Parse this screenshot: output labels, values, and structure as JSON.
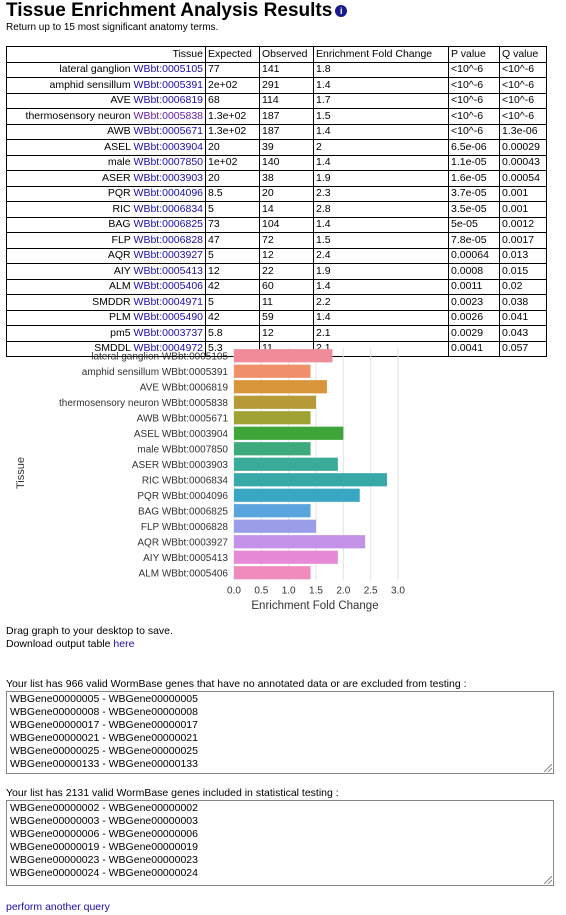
{
  "header": {
    "title": "Tissue Enrichment Analysis Results",
    "info_icon": "info-icon",
    "subtitle": "Return up to 15 most significant anatomy terms."
  },
  "table": {
    "columns": [
      "Tissue",
      "Expected",
      "Observed",
      "Enrichment Fold Change",
      "P value",
      "Q value"
    ],
    "rows": [
      {
        "name": "lateral ganglion",
        "id": "WBbt:0005105",
        "expected": "77",
        "observed": "141",
        "fold": "1.8",
        "p": "<10^-6",
        "q": "<10^-6"
      },
      {
        "name": "amphid sensillum",
        "id": "WBbt:0005391",
        "expected": "2e+02",
        "observed": "291",
        "fold": "1.4",
        "p": "<10^-6",
        "q": "<10^-6"
      },
      {
        "name": "AVE",
        "id": "WBbt:0006819",
        "expected": "68",
        "observed": "114",
        "fold": "1.7",
        "p": "<10^-6",
        "q": "<10^-6"
      },
      {
        "name": "thermosensory neuron",
        "id": "WBbt:0005838",
        "expected": "1.3e+02",
        "observed": "187",
        "fold": "1.5",
        "p": "<10^-6",
        "q": "<10^-6"
      },
      {
        "name": "AWB",
        "id": "WBbt:0005671",
        "expected": "1.3e+02",
        "observed": "187",
        "fold": "1.4",
        "p": "<10^-6",
        "q": "1.3e-06"
      },
      {
        "name": "ASEL",
        "id": "WBbt:0003904",
        "expected": "20",
        "observed": "39",
        "fold": "2",
        "p": "6.5e-06",
        "q": "0.00029"
      },
      {
        "name": "male",
        "id": "WBbt:0007850",
        "expected": "1e+02",
        "observed": "140",
        "fold": "1.4",
        "p": "1.1e-05",
        "q": "0.00043"
      },
      {
        "name": "ASER",
        "id": "WBbt:0003903",
        "expected": "20",
        "observed": "38",
        "fold": "1.9",
        "p": "1.6e-05",
        "q": "0.00054"
      },
      {
        "name": "PQR",
        "id": "WBbt:0004096",
        "expected": "8.5",
        "observed": "20",
        "fold": "2.3",
        "p": "3.7e-05",
        "q": "0.001"
      },
      {
        "name": "RIC",
        "id": "WBbt:0006834",
        "expected": "5",
        "observed": "14",
        "fold": "2.8",
        "p": "3.5e-05",
        "q": "0.001"
      },
      {
        "name": "BAG",
        "id": "WBbt:0006825",
        "expected": "73",
        "observed": "104",
        "fold": "1.4",
        "p": "5e-05",
        "q": "0.0012"
      },
      {
        "name": "FLP",
        "id": "WBbt:0006828",
        "expected": "47",
        "observed": "72",
        "fold": "1.5",
        "p": "7.8e-05",
        "q": "0.0017"
      },
      {
        "name": "AQR",
        "id": "WBbt:0003927",
        "expected": "5",
        "observed": "12",
        "fold": "2.4",
        "p": "0.00064",
        "q": "0.013"
      },
      {
        "name": "AIY",
        "id": "WBbt:0005413",
        "expected": "12",
        "observed": "22",
        "fold": "1.9",
        "p": "0.0008",
        "q": "0.015"
      },
      {
        "name": "ALM",
        "id": "WBbt:0005406",
        "expected": "42",
        "observed": "60",
        "fold": "1.4",
        "p": "0.0011",
        "q": "0.02"
      },
      {
        "name": "SMDDR",
        "id": "WBbt:0004971",
        "expected": "5",
        "observed": "11",
        "fold": "2.2",
        "p": "0.0023",
        "q": "0.038"
      },
      {
        "name": "PLM",
        "id": "WBbt:0005490",
        "expected": "42",
        "observed": "59",
        "fold": "1.4",
        "p": "0.0026",
        "q": "0.041"
      },
      {
        "name": "pm5",
        "id": "WBbt:0003737",
        "expected": "5.8",
        "observed": "12",
        "fold": "2.1",
        "p": "0.0029",
        "q": "0.043"
      },
      {
        "name": "SMDDL",
        "id": "WBbt:0004972",
        "expected": "5.3",
        "observed": "11",
        "fold": "2.1",
        "p": "0.0041",
        "q": "0.057"
      }
    ]
  },
  "chart_data": {
    "type": "bar",
    "orientation": "horizontal",
    "categories": [
      "lateral ganglion WBbt:0005105",
      "amphid sensillum WBbt:0005391",
      "AVE WBbt:0006819",
      "thermosensory neuron WBbt:0005838",
      "AWB WBbt:0005671",
      "ASEL WBbt:0003904",
      "male WBbt:0007850",
      "ASER WBbt:0003903",
      "RIC WBbt:0006834",
      "PQR WBbt:0004096",
      "BAG WBbt:0006825",
      "FLP WBbt:0006828",
      "AQR WBbt:0003927",
      "AIY WBbt:0005413",
      "ALM WBbt:0005406"
    ],
    "values": [
      1.8,
      1.4,
      1.7,
      1.5,
      1.4,
      2.0,
      1.4,
      1.9,
      2.8,
      2.3,
      1.4,
      1.5,
      2.4,
      1.9,
      1.4
    ],
    "colors": [
      "#f08b9a",
      "#f0906a",
      "#d9953a",
      "#b69a37",
      "#a0a334",
      "#3da53a",
      "#3caa7a",
      "#3aab98",
      "#38a9a8",
      "#39a7c4",
      "#5aa5dd",
      "#9a9de8",
      "#c491e8",
      "#e68ad8",
      "#f08bbd"
    ],
    "xlabel": "Enrichment Fold Change",
    "ylabel": "Tissue",
    "xlim": [
      0,
      3.0
    ],
    "xticks": [
      "0.0",
      "0.5",
      "1.0",
      "1.5",
      "2.0",
      "2.5",
      "3.0"
    ],
    "grid": true
  },
  "notes": {
    "drag": "Drag graph to your desktop to save.",
    "download_prefix": "Download output table",
    "download_link": "here",
    "excluded_label": "Your list has 966 valid WormBase genes that have no annotated data or are excluded from testing :",
    "included_label": "Your list has 2131 valid WormBase genes included in statistical testing :"
  },
  "excluded_genes": [
    "WBGene00000005 - WBGene00000005",
    "WBGene00000008 - WBGene00000008",
    "WBGene00000017 - WBGene00000017",
    "WBGene00000021 - WBGene00000021",
    "WBGene00000025 - WBGene00000025",
    "WBGene00000133 - WBGene00000133"
  ],
  "included_genes": [
    "WBGene00000002 - WBGene00000002",
    "WBGene00000003 - WBGene00000003",
    "WBGene00000006 - WBGene00000006",
    "WBGene00000019 - WBGene00000019",
    "WBGene00000023 - WBGene00000023",
    "WBGene00000024 - WBGene00000024"
  ],
  "footer": {
    "again_link": "perform another query"
  }
}
